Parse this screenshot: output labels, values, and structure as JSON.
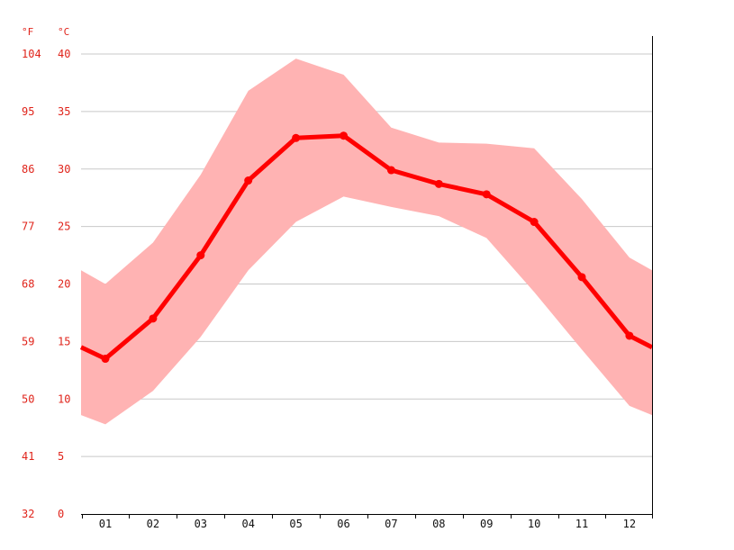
{
  "chart_data": {
    "type": "line",
    "title": "",
    "xlabel": "",
    "ylabel": "",
    "units": {
      "fahrenheit": "°F",
      "celsius": "°C"
    },
    "categories": [
      "01",
      "02",
      "03",
      "04",
      "05",
      "06",
      "07",
      "08",
      "09",
      "10",
      "11",
      "12"
    ],
    "y_ticks_celsius": [
      "0",
      "5",
      "10",
      "15",
      "20",
      "25",
      "30",
      "35",
      "40"
    ],
    "y_ticks_fahrenheit": [
      "32",
      "41",
      "50",
      "59",
      "68",
      "77",
      "86",
      "95",
      "104"
    ],
    "ylim": [
      0,
      40
    ],
    "grid": true,
    "series": [
      {
        "role": "average",
        "values": [
          13.5,
          17.0,
          22.5,
          29.0,
          32.7,
          32.9,
          29.9,
          28.7,
          27.8,
          25.4,
          20.6,
          15.5
        ],
        "edge_left": 14.5,
        "edge_right": 14.5
      },
      {
        "role": "max",
        "values": [
          20.0,
          23.6,
          29.5,
          36.8,
          39.6,
          38.2,
          33.6,
          32.3,
          32.2,
          31.8,
          27.4,
          22.3
        ],
        "edge_left": 21.2,
        "edge_right": 21.2
      },
      {
        "role": "min",
        "values": [
          7.8,
          10.7,
          15.4,
          21.2,
          25.4,
          27.6,
          26.7,
          25.9,
          24.0,
          19.3,
          14.3,
          9.4
        ],
        "edge_left": 8.6,
        "edge_right": 8.6
      }
    ],
    "colors": {
      "line": "#ff0000",
      "band": "#ffb3b3",
      "grid": "#c8c8c8",
      "tick_label": "#e0241b",
      "axis": "#000000"
    }
  }
}
